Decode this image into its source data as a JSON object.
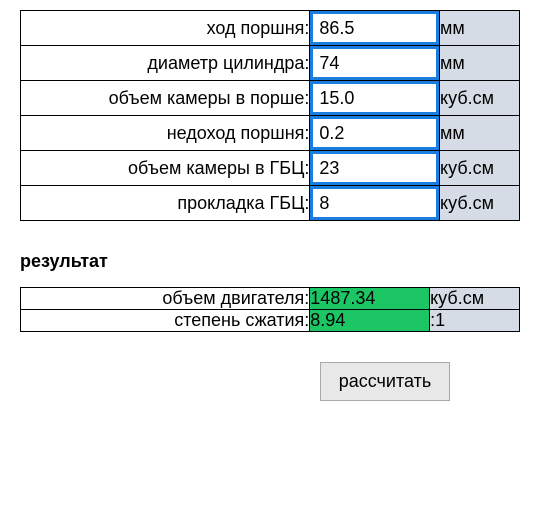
{
  "inputs": [
    {
      "label": "ход поршня:",
      "value": "86.5",
      "unit": "мм"
    },
    {
      "label": "диаметр цилиндра:",
      "value": "74",
      "unit": "мм"
    },
    {
      "label": "объем камеры в порше:",
      "value": "15.0",
      "unit": "куб.см"
    },
    {
      "label": "недоход поршня:",
      "value": "0.2",
      "unit": "мм"
    },
    {
      "label": "объем камеры в ГБЦ:",
      "value": "23",
      "unit": "куб.см"
    },
    {
      "label": "прокладка ГБЦ:",
      "value": "8",
      "unit": "куб.см"
    }
  ],
  "result_header": "результат",
  "results": [
    {
      "label": "объем двигателя:",
      "value": "1487.34",
      "unit": "куб.см"
    },
    {
      "label": "степень сжатия:",
      "value": "8.94",
      "unit": ":1"
    }
  ],
  "calc_button": "рассчитать",
  "colors": {
    "input_border": "#1a7de0",
    "unit_bg": "#d5dce5",
    "result_bg": "#1dc665",
    "border": "#000000"
  }
}
